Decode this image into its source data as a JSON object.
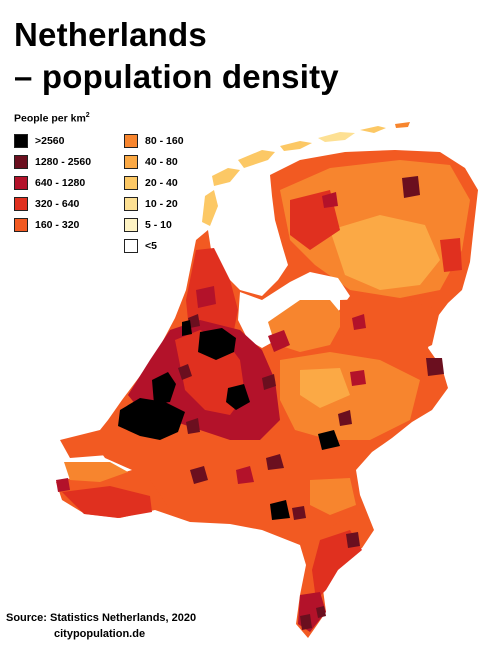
{
  "title_line1": "Netherlands",
  "title_line2": "– population density",
  "legend": {
    "heading": "People per km",
    "heading_sup": "2",
    "col1": [
      {
        "label": ">2560",
        "color": "#000000"
      },
      {
        "label": "1280 - 2560",
        "color": "#6b0f1f"
      },
      {
        "label": "640 - 1280",
        "color": "#b3122a"
      },
      {
        "label": "320 - 640",
        "color": "#e0301f"
      },
      {
        "label": "160 - 320",
        "color": "#f25a22"
      }
    ],
    "col2": [
      {
        "label": "80 - 160",
        "color": "#f7852e"
      },
      {
        "label": "40 - 80",
        "color": "#fba945"
      },
      {
        "label": "20 - 40",
        "color": "#fcc865"
      },
      {
        "label": "10 - 20",
        "color": "#fde093"
      },
      {
        "label": "5 - 10",
        "color": "#fef3c4"
      },
      {
        "label": "<5",
        "color": "#ffffff"
      }
    ]
  },
  "source_line1": "Source:  Statistics Netherlands, 2020",
  "source_line2": "citypopulation.de"
}
